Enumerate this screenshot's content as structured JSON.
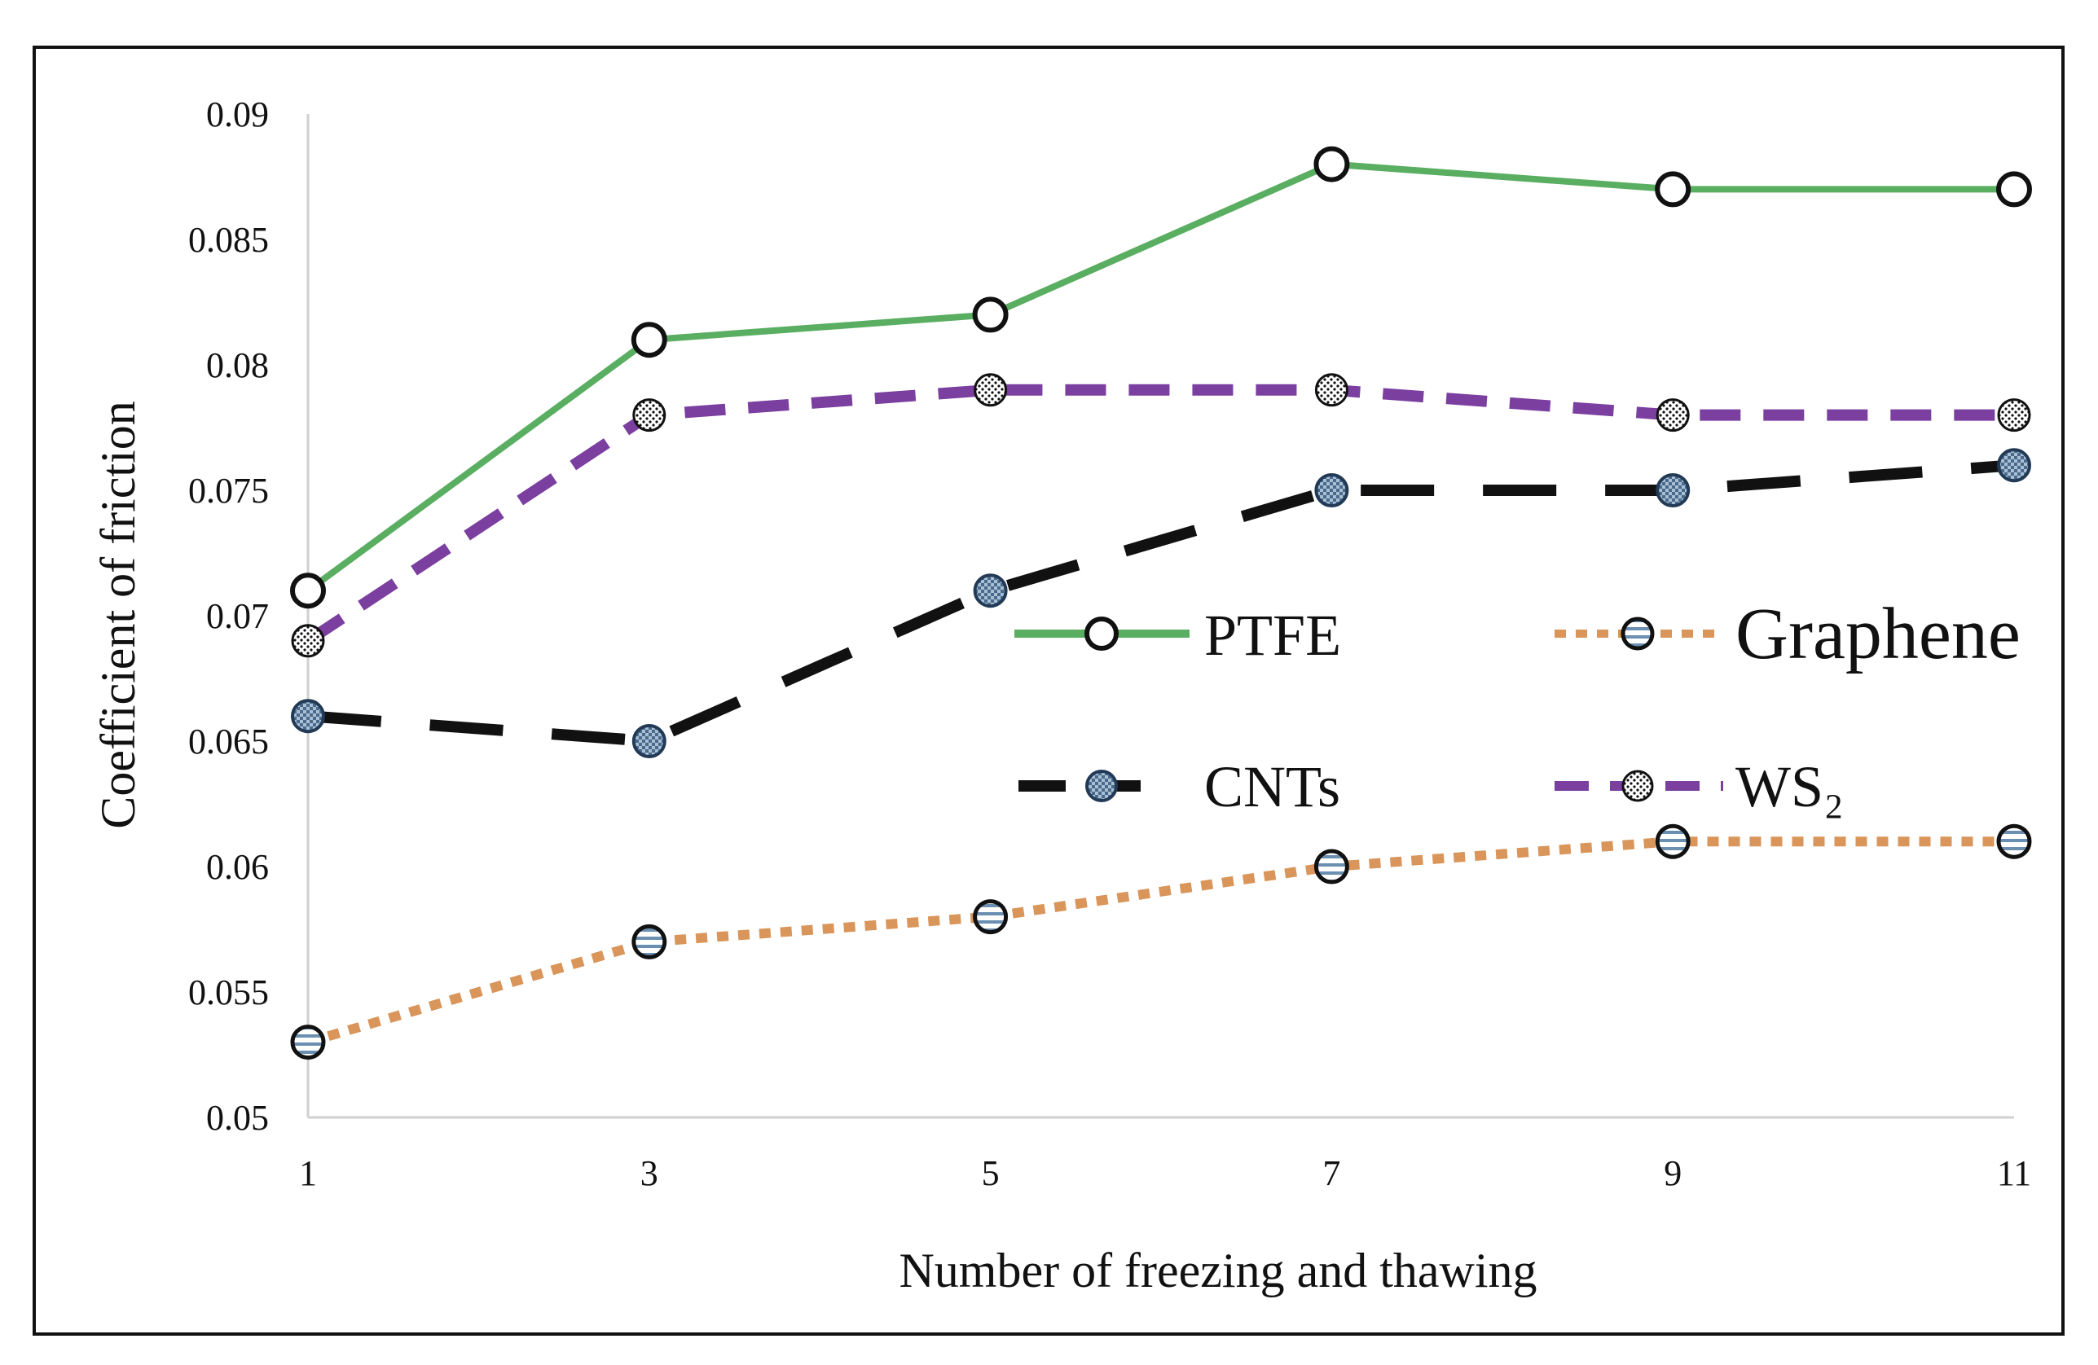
{
  "chart_data": {
    "type": "line",
    "xlabel": "Number of freezing and thawing",
    "ylabel": "Coefficient of friction",
    "x": [
      1,
      3,
      5,
      7,
      9,
      11
    ],
    "x_tick_labels": [
      "1",
      "3",
      "5",
      "7",
      "9",
      "11"
    ],
    "ylim": [
      0.05,
      0.09
    ],
    "y_tick_labels": [
      "0.05",
      "0.055",
      "0.06",
      "0.065",
      "0.07",
      "0.075",
      "0.08",
      "0.085",
      "0.09"
    ],
    "grid": false,
    "legend_position": "center-right",
    "series": [
      {
        "name": "PTFE",
        "color": "#5aae61",
        "line_style": "solid",
        "marker": "open-circle",
        "values": [
          0.071,
          0.081,
          0.082,
          0.088,
          0.087,
          0.087
        ]
      },
      {
        "name": "Graphene",
        "color": "#d9955a",
        "line_style": "dotted",
        "marker": "striped-circle",
        "values": [
          0.053,
          0.057,
          0.058,
          0.06,
          0.061,
          0.061
        ]
      },
      {
        "name": "CNTs",
        "color": "#111111",
        "line_style": "long-dash",
        "marker": "checkered-circle",
        "values": [
          0.066,
          0.065,
          0.071,
          0.075,
          0.075,
          0.076
        ]
      },
      {
        "name": "WS₂",
        "color": "#7b3fa0",
        "line_style": "dash",
        "marker": "dotted-circle",
        "values": [
          0.069,
          0.078,
          0.079,
          0.079,
          0.078,
          0.078
        ]
      }
    ]
  }
}
